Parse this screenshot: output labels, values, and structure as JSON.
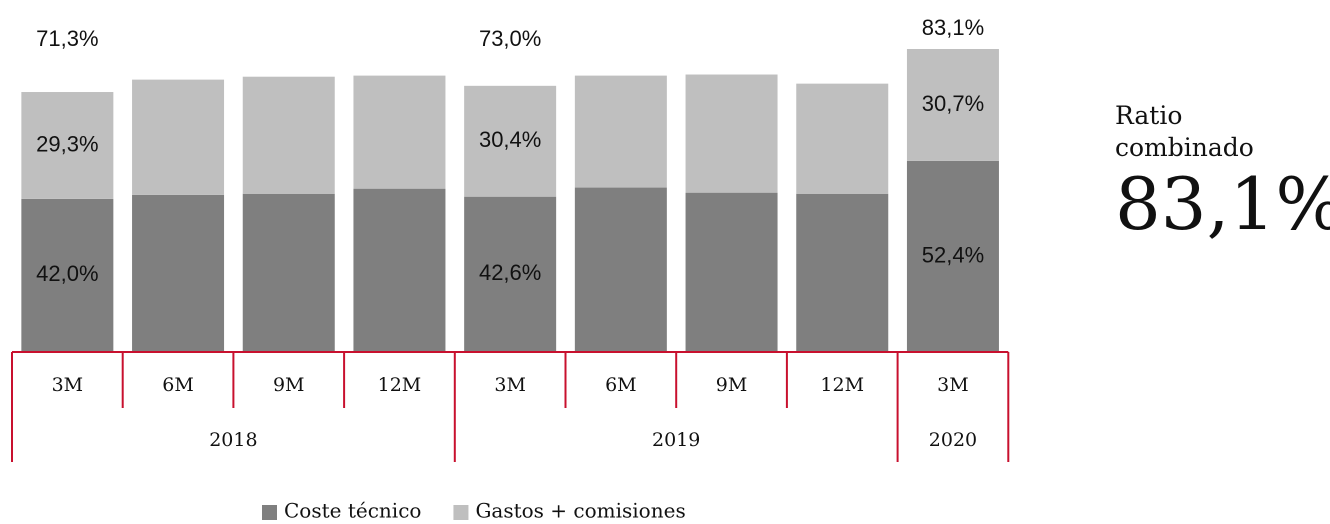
{
  "chart_data": {
    "type": "stacked_bar",
    "groups": [
      {
        "label": "2018",
        "categories": [
          "3M",
          "6M",
          "9M",
          "12M"
        ]
      },
      {
        "label": "2019",
        "categories": [
          "3M",
          "6M",
          "9M",
          "12M"
        ]
      },
      {
        "label": "2020",
        "categories": [
          "3M"
        ]
      }
    ],
    "series": [
      {
        "name": "Coste técnico",
        "color": "#7f7f7f",
        "values": [
          42.0,
          43.1,
          43.4,
          44.8,
          42.6,
          45.1,
          43.7,
          43.4,
          52.4
        ],
        "value_labels": [
          "42,0%",
          null,
          null,
          null,
          "42,6%",
          null,
          null,
          null,
          "52,4%"
        ]
      },
      {
        "name": "Gastos + comisiones",
        "color": "#bfbfbf",
        "values": [
          29.3,
          31.6,
          32.1,
          31.0,
          30.4,
          30.7,
          32.4,
          30.2,
          30.7
        ],
        "value_labels": [
          "29,3%",
          null,
          null,
          null,
          "30,4%",
          null,
          null,
          null,
          "30,7%"
        ]
      }
    ],
    "totals": [
      71.3,
      null,
      null,
      null,
      73.0,
      null,
      null,
      null,
      83.1
    ],
    "total_labels": [
      "71,3%",
      null,
      null,
      null,
      "73,0%",
      null,
      null,
      null,
      "83,1%"
    ],
    "axis_color": "#c8102e",
    "kpi": {
      "label": "Ratio combinado",
      "value": "83,1%"
    }
  }
}
